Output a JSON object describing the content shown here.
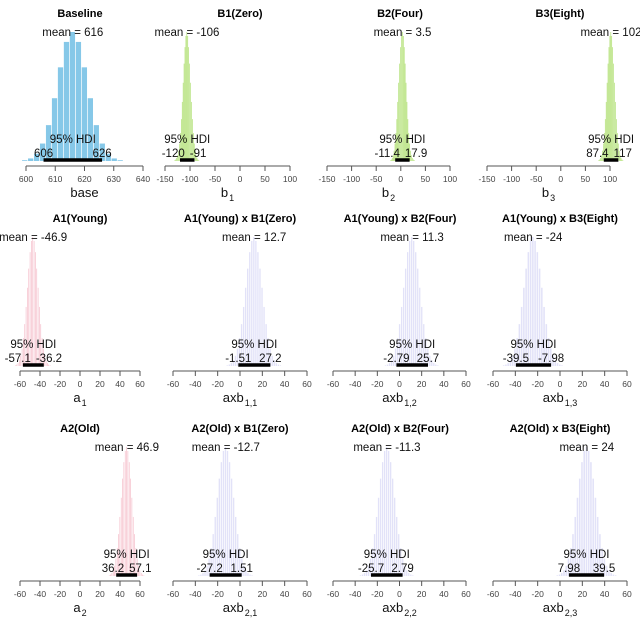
{
  "chart_data": [
    {
      "type": "bar",
      "title": "Baseline",
      "xlabel": "base",
      "xlabel_sub": "",
      "mean": 616,
      "mean_label": "mean = 616",
      "hdi": [
        606,
        626
      ],
      "hdi_labels": [
        "606",
        "626"
      ],
      "hdi_title": "95% HDI",
      "ticks": [
        600,
        610,
        620,
        630,
        640
      ],
      "xlim": [
        600,
        640
      ],
      "color": "#86c8e8"
    },
    {
      "type": "bar",
      "title": "B1(Zero)",
      "xlabel": "b",
      "xlabel_sub": "1",
      "mean": -106,
      "mean_label": "mean = -106",
      "hdi": [
        -120,
        -91
      ],
      "hdi_labels": [
        "-120",
        "-91"
      ],
      "hdi_title": "95% HDI",
      "ticks": [
        -150,
        -100,
        -50,
        0,
        50,
        100
      ],
      "xlim": [
        -150,
        100
      ],
      "color": "#a8dc64"
    },
    {
      "type": "bar",
      "title": "B2(Four)",
      "xlabel": "b",
      "xlabel_sub": "2",
      "mean": 3.5,
      "mean_label": "mean = 3.5",
      "hdi": [
        -11.4,
        17.9
      ],
      "hdi_labels": [
        "-11.4",
        "17.9"
      ],
      "hdi_title": "95% HDI",
      "ticks": [
        -150,
        -100,
        -50,
        0,
        50,
        100
      ],
      "xlim": [
        -150,
        100
      ],
      "color": "#a8dc64"
    },
    {
      "type": "bar",
      "title": "B3(Eight)",
      "xlabel": "b",
      "xlabel_sub": "3",
      "mean": 102,
      "mean_label": "mean = 102",
      "hdi": [
        87.4,
        117
      ],
      "hdi_labels": [
        "87.4",
        "117"
      ],
      "hdi_title": "95% HDI",
      "ticks": [
        -150,
        -100,
        -50,
        0,
        50,
        100
      ],
      "xlim": [
        -150,
        100
      ],
      "color": "#a8dc64"
    },
    {
      "type": "bar",
      "title": "A1(Young)",
      "xlabel": "a",
      "xlabel_sub": "1",
      "mean": -46.9,
      "mean_label": "mean = -46.9",
      "hdi": [
        -57.1,
        -36.2
      ],
      "hdi_labels": [
        "-57.1",
        "-36.2"
      ],
      "hdi_title": "95% HDI",
      "ticks": [
        -60,
        -40,
        -20,
        0,
        20,
        40,
        60
      ],
      "xlim": [
        -60,
        60
      ],
      "color": "#f4b8c6"
    },
    {
      "type": "bar",
      "title": "A1(Young) x B1(Zero)",
      "xlabel": "axb",
      "xlabel_sub": "1,1",
      "mean": 12.7,
      "mean_label": "mean = 12.7",
      "hdi": [
        -1.51,
        27.2
      ],
      "hdi_labels": [
        "-1.51",
        "27.2"
      ],
      "hdi_title": "95% HDI",
      "ticks": [
        -60,
        -40,
        -20,
        0,
        20,
        40,
        60
      ],
      "xlim": [
        -60,
        60
      ],
      "color": "#e2e2f8"
    },
    {
      "type": "bar",
      "title": "A1(Young) x B2(Four)",
      "xlabel": "axb",
      "xlabel_sub": "1,2",
      "mean": 11.3,
      "mean_label": "mean = 11.3",
      "hdi": [
        -2.79,
        25.7
      ],
      "hdi_labels": [
        "-2.79",
        "25.7"
      ],
      "hdi_title": "95% HDI",
      "ticks": [
        -60,
        -40,
        -20,
        0,
        20,
        40,
        60
      ],
      "xlim": [
        -60,
        60
      ],
      "color": "#e2e2f8"
    },
    {
      "type": "bar",
      "title": "A1(Young) x B3(Eight)",
      "xlabel": "axb",
      "xlabel_sub": "1,3",
      "mean": -24,
      "mean_label": "mean = -24",
      "hdi": [
        -39.5,
        -7.98
      ],
      "hdi_labels": [
        "-39.5",
        "-7.98"
      ],
      "hdi_title": "95% HDI",
      "ticks": [
        -60,
        -40,
        -20,
        0,
        20,
        40,
        60
      ],
      "xlim": [
        -60,
        60
      ],
      "color": "#e2e2f8"
    },
    {
      "type": "bar",
      "title": "A2(Old)",
      "xlabel": "a",
      "xlabel_sub": "2",
      "mean": 46.9,
      "mean_label": "mean = 46.9",
      "hdi": [
        36.2,
        57.1
      ],
      "hdi_labels": [
        "36.2",
        "57.1"
      ],
      "hdi_title": "95% HDI",
      "ticks": [
        -60,
        -40,
        -20,
        0,
        20,
        40,
        60
      ],
      "xlim": [
        -60,
        60
      ],
      "color": "#f4b8c6"
    },
    {
      "type": "bar",
      "title": "A2(Old) x B1(Zero)",
      "xlabel": "axb",
      "xlabel_sub": "2,1",
      "mean": -12.7,
      "mean_label": "mean = -12.7",
      "hdi": [
        -27.2,
        1.51
      ],
      "hdi_labels": [
        "-27.2",
        "1.51"
      ],
      "hdi_title": "95% HDI",
      "ticks": [
        -60,
        -40,
        -20,
        0,
        20,
        40,
        60
      ],
      "xlim": [
        -60,
        60
      ],
      "color": "#e2e2f8"
    },
    {
      "type": "bar",
      "title": "A2(Old) x B2(Four)",
      "xlabel": "axb",
      "xlabel_sub": "2,2",
      "mean": -11.3,
      "mean_label": "mean = -11.3",
      "hdi": [
        -25.7,
        2.79
      ],
      "hdi_labels": [
        "-25.7",
        "2.79"
      ],
      "hdi_title": "95% HDI",
      "ticks": [
        -60,
        -40,
        -20,
        0,
        20,
        40,
        60
      ],
      "xlim": [
        -60,
        60
      ],
      "color": "#e2e2f8"
    },
    {
      "type": "bar",
      "title": "A2(Old) x B3(Eight)",
      "xlabel": "axb",
      "xlabel_sub": "2,3",
      "mean": 24,
      "mean_label": "mean = 24",
      "hdi": [
        7.98,
        39.5
      ],
      "hdi_labels": [
        "7.98",
        "39.5"
      ],
      "hdi_title": "95% HDI",
      "ticks": [
        -60,
        -40,
        -20,
        0,
        20,
        40,
        60
      ],
      "xlim": [
        -60,
        60
      ],
      "color": "#e2e2f8"
    }
  ]
}
